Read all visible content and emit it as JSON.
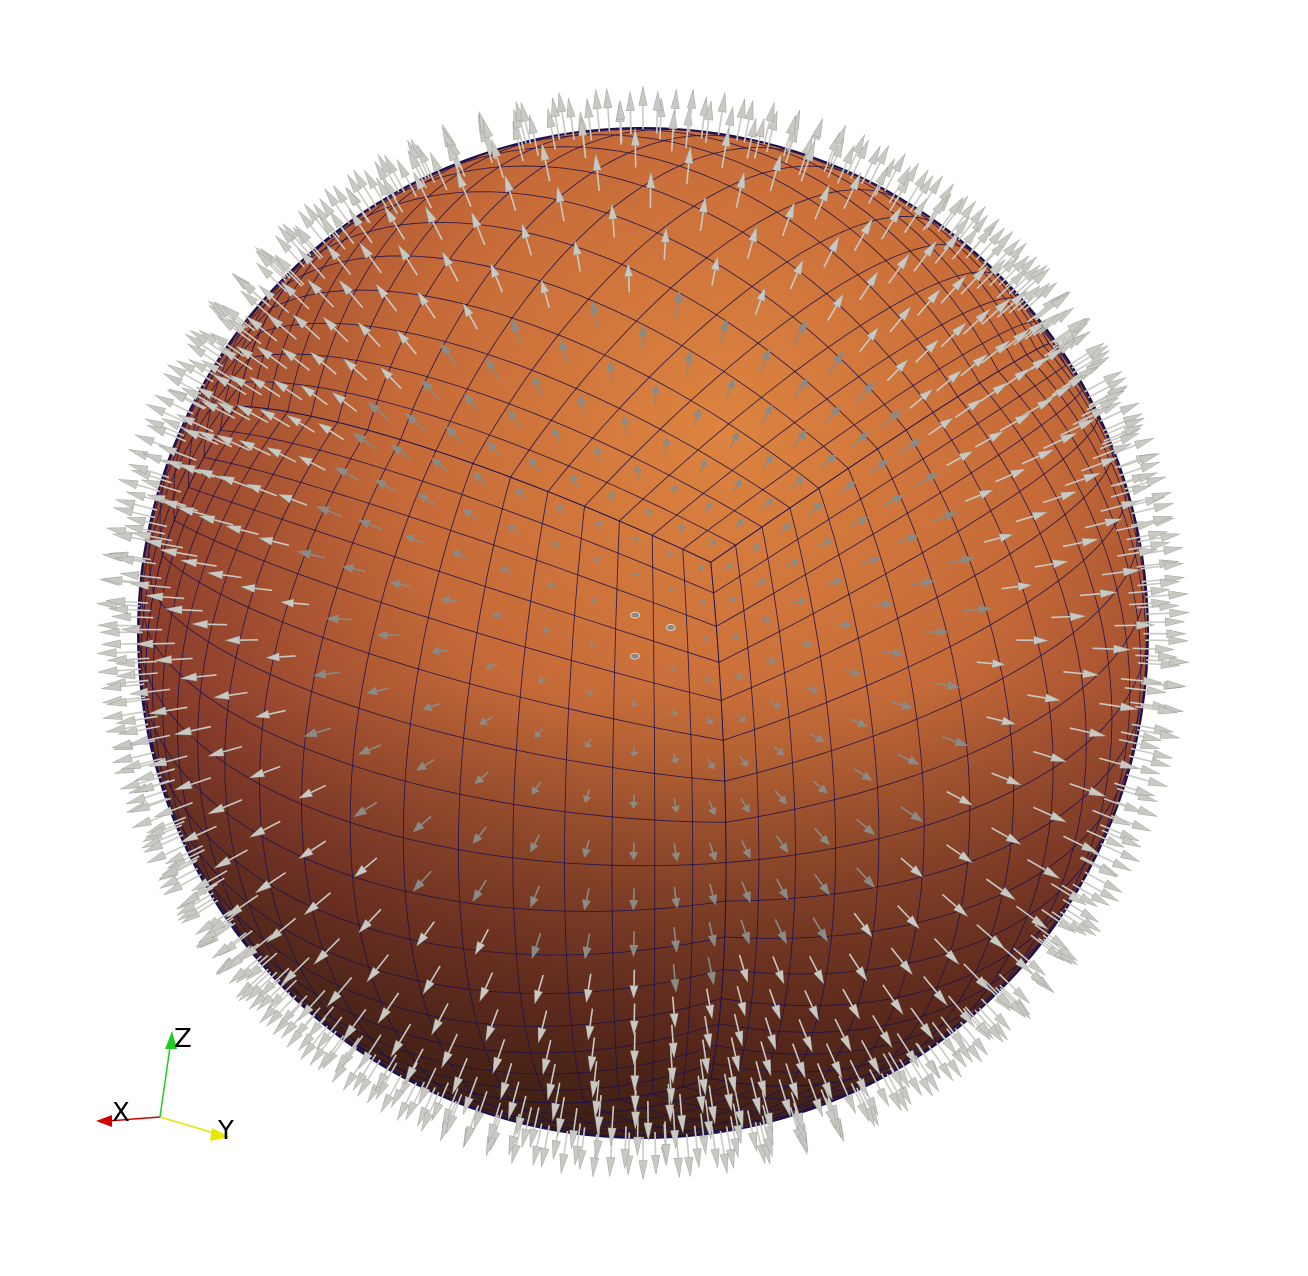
{
  "scene": {
    "background": "#ffffff",
    "object": "sphere",
    "surface_colors": [
      "#d87a3c",
      "#b35a36",
      "#7a3a28",
      "#4a2e1e"
    ],
    "mesh_line_color": "#1a1050",
    "glyph_type": "arrow",
    "glyph_color": "#c9c9c4",
    "glyph_shade_color": "#8a8a86"
  },
  "orientation_axes": {
    "x_label": "X",
    "y_label": "Y",
    "z_label": "Z",
    "x_color": "#d40000",
    "y_color": "#e6e600",
    "z_color": "#22cc22"
  }
}
